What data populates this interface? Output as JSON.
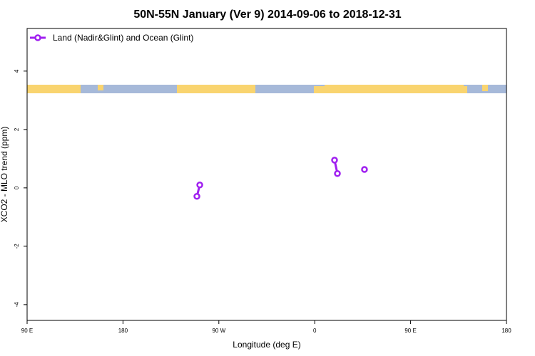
{
  "chart_data": {
    "type": "line",
    "title": "50N-55N January (Ver 9)   2014-09-06 to 2018-12-31",
    "x_label": "Longitude (deg E)",
    "y_label": "XCO2 - MLO trend (ppm)",
    "xlim": [
      90,
      540
    ],
    "xticks": [
      {
        "value": 90,
        "label": "90 E"
      },
      180,
      {
        "value": 270,
        "label": "90 W"
      },
      {
        "value": 360,
        "label": "0"
      },
      {
        "value": 450,
        "label": "90 E"
      },
      {
        "value": 540,
        "label": "180"
      }
    ],
    "ylim": [
      -4.54,
      5.46
    ],
    "yticks": [
      -4,
      -2,
      0,
      2,
      4
    ],
    "legend": "top-left",
    "series": [
      {
        "name": "Land (Nadir&Glint) and Ocean (Glint)",
        "color": "#a020f0",
        "x": [
          249.4,
          252.1,
          null,
          378.6,
          381.3,
          null,
          406.7
        ],
        "values": [
          -0.29,
          0.1,
          null,
          0.95,
          0.49,
          null,
          0.63
        ]
      }
    ]
  }
}
